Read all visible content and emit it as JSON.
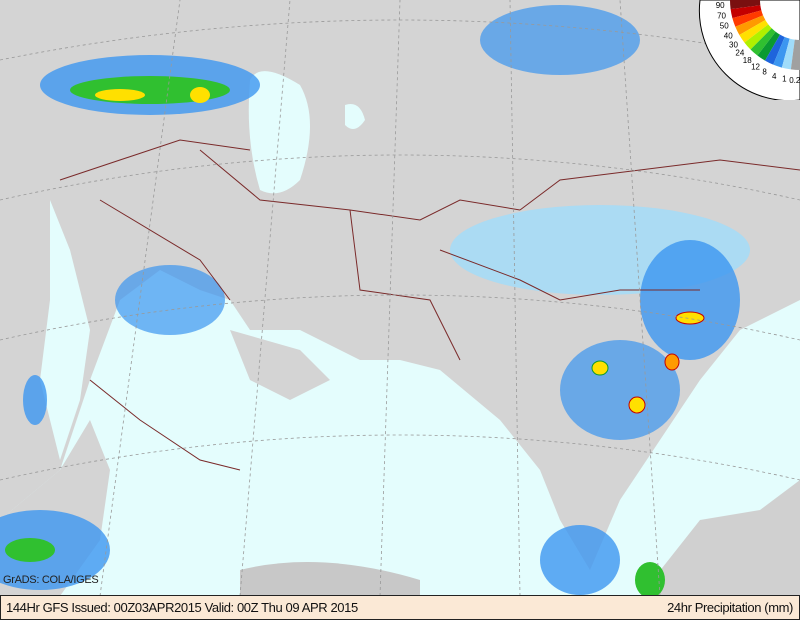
{
  "map": {
    "credit": "GrADS: COLA/IGES",
    "footer": {
      "left": "144Hr GFS Issued: 00Z03APR2015 Valid: 00Z Thu 09 APR 2015",
      "right": "24hr Precipitation (mm)"
    },
    "legend": {
      "labels": [
        "90",
        "70",
        "50",
        "40",
        "30",
        "24",
        "18",
        "12",
        "8",
        "4",
        "1",
        "0.2"
      ],
      "colors": [
        "#7a1010",
        "#c40000",
        "#ff3a00",
        "#ff9a00",
        "#ffe000",
        "#b0f000",
        "#30c030",
        "#0a9a30",
        "#1e64dc",
        "#3c96f0",
        "#a0dcfa",
        "#a0a0a0"
      ]
    },
    "colors": {
      "ocean": "#e4fdfd",
      "land": "#d2d2d2",
      "border": "#7a2a2a"
    }
  }
}
